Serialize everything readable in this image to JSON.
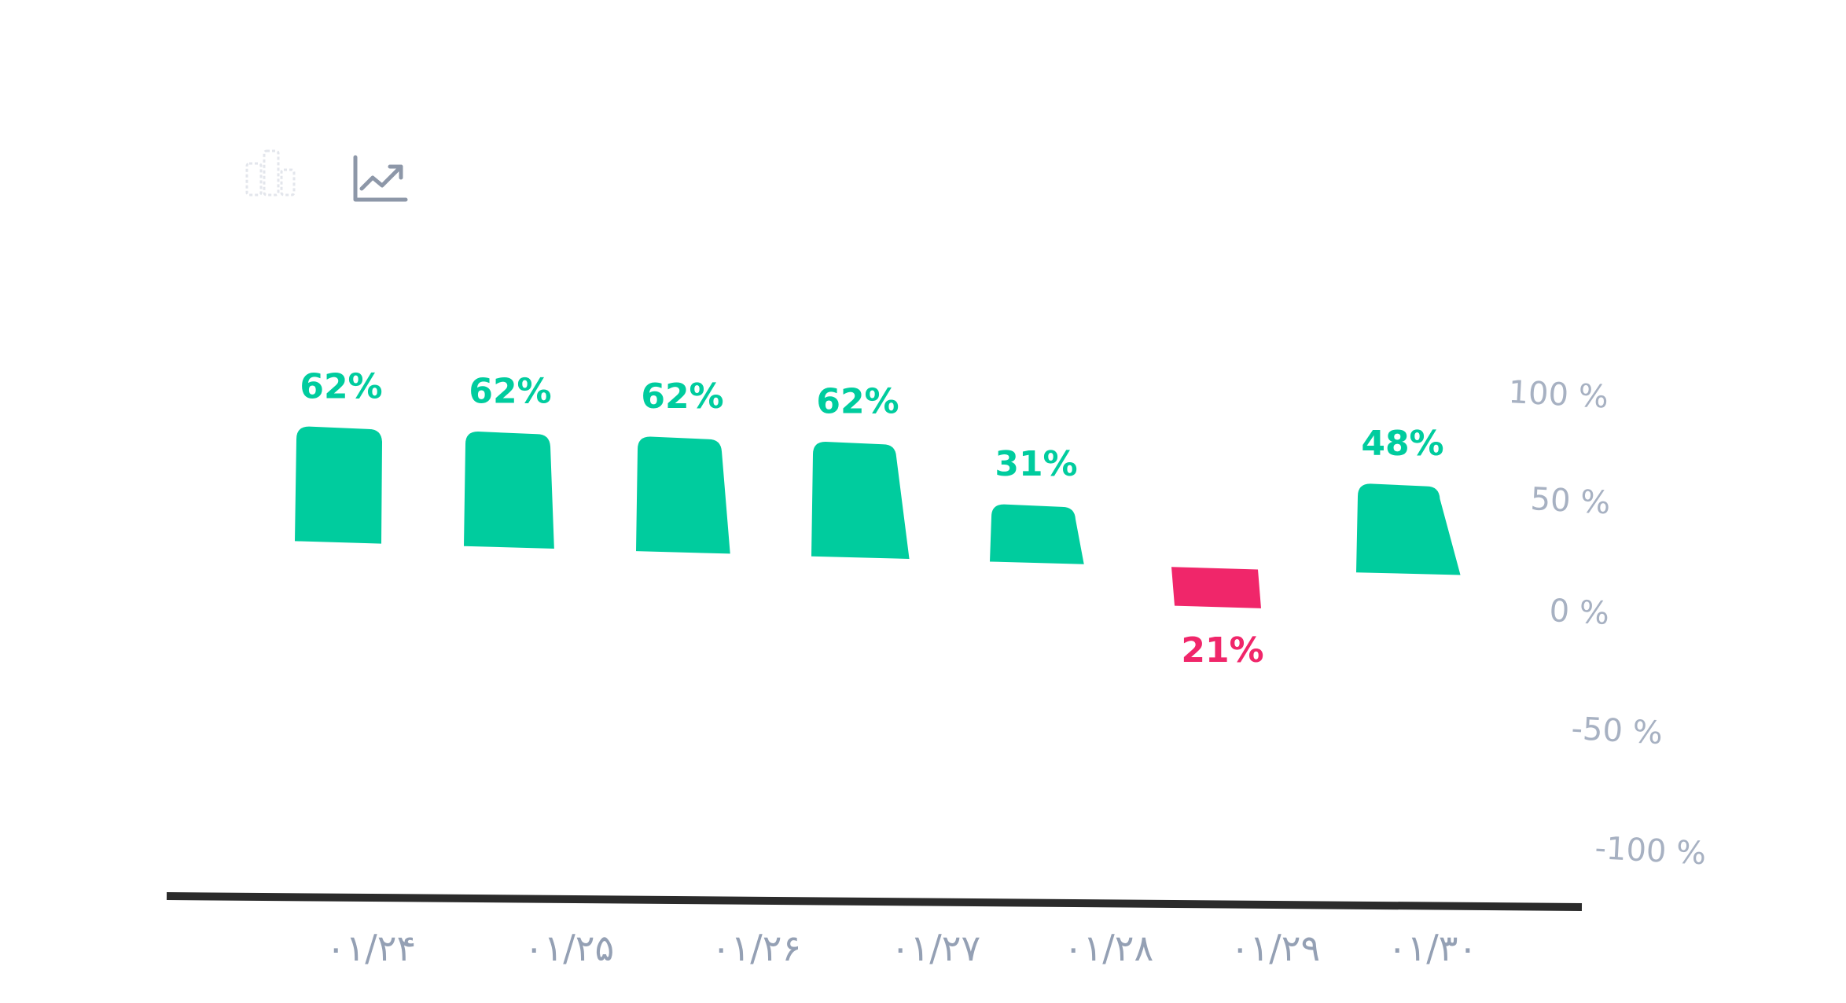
{
  "toolbar": {
    "share_icon": "share-icon",
    "trend_icon": "trend-line-icon"
  },
  "colors": {
    "positive": "#00CC9E",
    "negative": "#F0266A",
    "axis_line": "#2b2b2b",
    "tick_text": "#a7b1c2",
    "category_text": "#94a0b4",
    "icon": "#8d97a8"
  },
  "chart_data": {
    "type": "bar",
    "categories": [
      "۰۱/۲۴",
      "۰۱/۲۵",
      "۰۱/۲۶",
      "۰۱/۲۷",
      "۰۱/۲۸",
      "۰۱/۲۹",
      "۰۱/۳۰"
    ],
    "values": [
      62,
      62,
      62,
      62,
      31,
      -21,
      48
    ],
    "value_labels": [
      "62%",
      "62%",
      "62%",
      "62%",
      "31%",
      "21%",
      "48%"
    ],
    "y_ticks": [
      100,
      50,
      0,
      -50,
      -100
    ],
    "y_tick_labels": [
      "100 %",
      "50 %",
      "0 %",
      "-50 %",
      "-100 %"
    ],
    "ylim": [
      -100,
      100
    ],
    "title": "",
    "xlabel": "",
    "ylabel": "",
    "grid": false,
    "legend": "none"
  }
}
